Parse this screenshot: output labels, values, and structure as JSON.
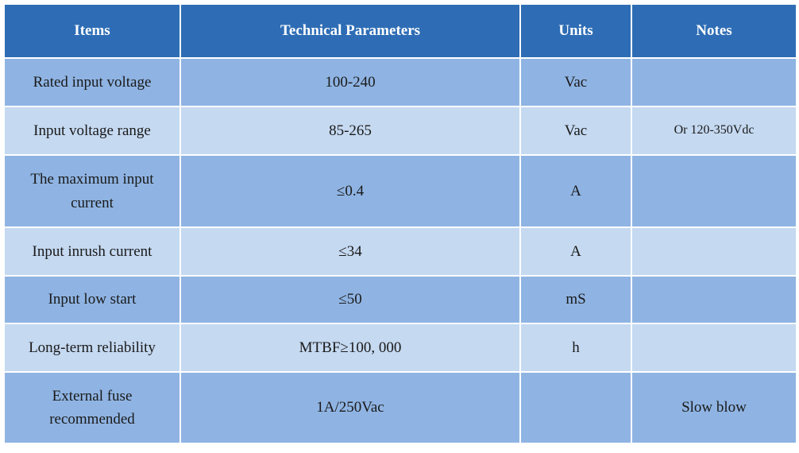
{
  "headers": [
    "Items",
    "Technical Parameters",
    "Units",
    "Notes"
  ],
  "rows": [
    {
      "item": "Rated input voltage",
      "param": "100-240",
      "unit": "Vac",
      "note": ""
    },
    {
      "item": "Input voltage range",
      "param": "85-265",
      "unit": "Vac",
      "note": "Or 120-350Vdc"
    },
    {
      "item": "The maximum input current",
      "param": "≤0.4",
      "unit": "A",
      "note": ""
    },
    {
      "item": "Input inrush current",
      "param": "≤34",
      "unit": "A",
      "note": ""
    },
    {
      "item": "Input low start",
      "param": "≤50",
      "unit": "mS",
      "note": ""
    },
    {
      "item": "Long-term reliability",
      "param": "MTBF≥100, 000",
      "unit": "h",
      "note": ""
    },
    {
      "item": "External fuse recommended",
      "param": "1A/250Vac",
      "unit": "",
      "note": "Slow blow"
    }
  ],
  "colors": {
    "header": "#2e6db5",
    "row_dark": "#8fb4e3",
    "row_light": "#c5d9f1"
  }
}
